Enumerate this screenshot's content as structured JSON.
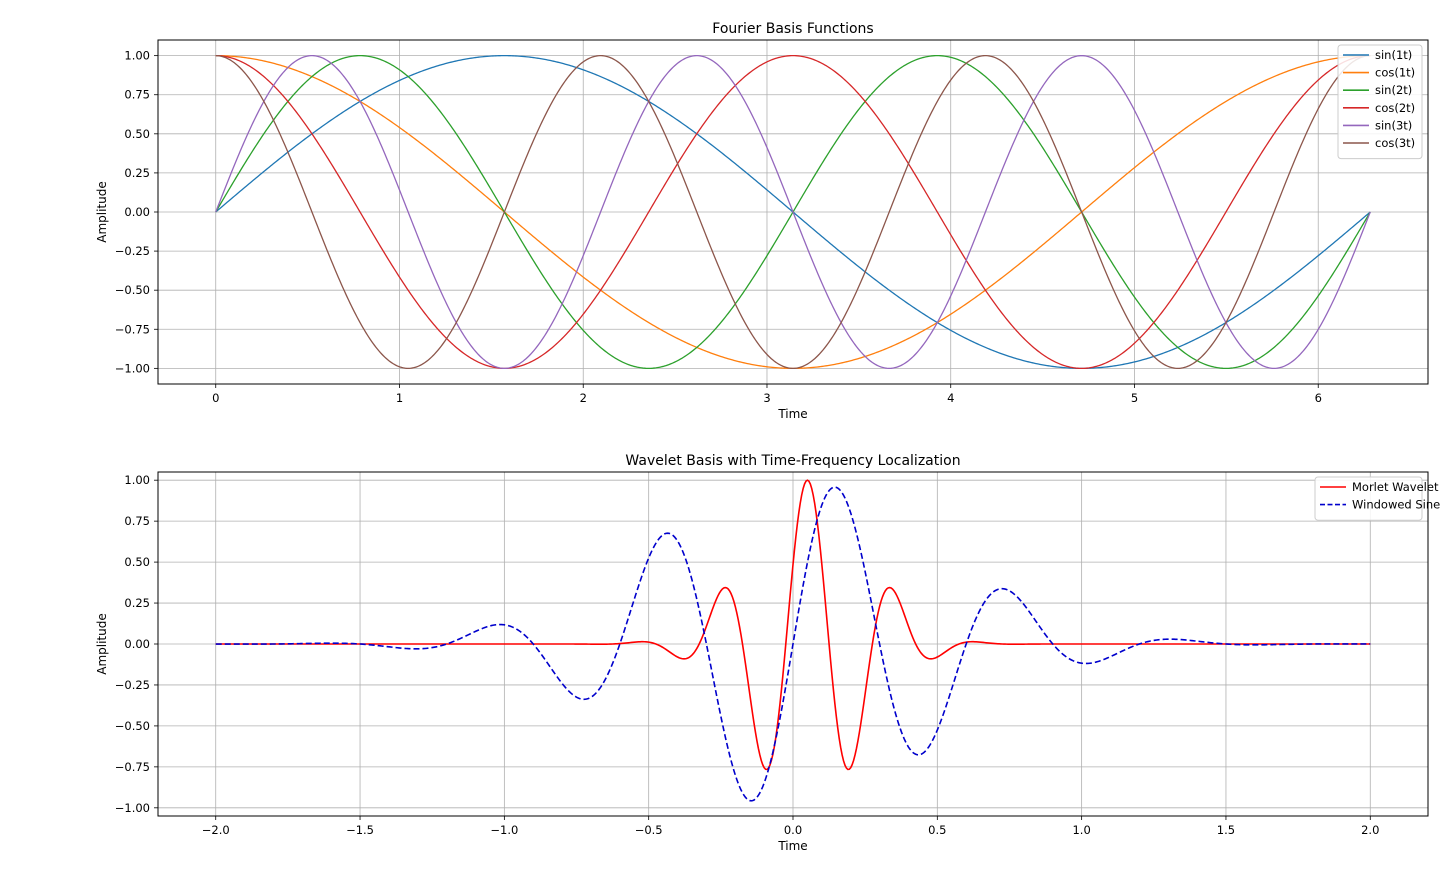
{
  "chart_data": [
    {
      "type": "line",
      "title": "Fourier Basis Functions",
      "xlabel": "Time",
      "ylabel": "Amplitude",
      "xlim": [
        -0.3142,
        6.5974
      ],
      "ylim": [
        -1.1,
        1.1
      ],
      "xticks": [
        0,
        1,
        2,
        3,
        4,
        5,
        6
      ],
      "yticks": [
        -1.0,
        -0.75,
        -0.5,
        -0.25,
        0.0,
        0.25,
        0.5,
        0.75,
        1.0
      ],
      "ytick_labels": [
        "−1.00",
        "−0.75",
        "−0.50",
        "−0.25",
        "0.00",
        "0.25",
        "0.50",
        "0.75",
        "1.00"
      ],
      "grid": true,
      "legend": "top-right",
      "x_range": [
        0,
        6.2832
      ],
      "series": [
        {
          "name": "sin(1t)",
          "func": "sin",
          "freq": 1,
          "color": "#1f77b4"
        },
        {
          "name": "cos(1t)",
          "func": "cos",
          "freq": 1,
          "color": "#ff7f0e"
        },
        {
          "name": "sin(2t)",
          "func": "sin",
          "freq": 2,
          "color": "#2ca02c"
        },
        {
          "name": "cos(2t)",
          "func": "cos",
          "freq": 2,
          "color": "#d62728"
        },
        {
          "name": "sin(3t)",
          "func": "sin",
          "freq": 3,
          "color": "#9467bd"
        },
        {
          "name": "cos(3t)",
          "func": "cos",
          "freq": 3,
          "color": "#8c564b"
        }
      ]
    },
    {
      "type": "line",
      "title": "Wavelet Basis with Time-Frequency Localization",
      "xlabel": "Time",
      "ylabel": "Amplitude",
      "xlim": [
        -2.2,
        2.2
      ],
      "ylim": [
        -1.05,
        1.05
      ],
      "xticks": [
        -2.0,
        -1.5,
        -1.0,
        -0.5,
        0.0,
        0.5,
        1.0,
        1.5,
        2.0
      ],
      "xtick_labels": [
        "−2.0",
        "−1.5",
        "−1.0",
        "−0.5",
        "0.0",
        "0.5",
        "1.0",
        "1.5",
        "2.0"
      ],
      "yticks": [
        -1.0,
        -0.75,
        -0.5,
        -0.25,
        0.0,
        0.25,
        0.5,
        0.75,
        1.0
      ],
      "ytick_labels": [
        "−1.00",
        "−0.75",
        "−0.50",
        "−0.25",
        "0.00",
        "0.25",
        "0.50",
        "0.75",
        "1.00"
      ],
      "grid": true,
      "legend": "top-right",
      "x_range": [
        -2.0,
        2.0
      ],
      "series": [
        {
          "name": "Morlet Wavelet",
          "func": "morlet",
          "center": 0.05,
          "sigma": 0.2,
          "freq": 3.3333,
          "style": "solid",
          "color": "#ff0000"
        },
        {
          "name": "Windowed Sine",
          "func": "windowed_sine",
          "center": 0.0,
          "sigma": 0.5,
          "freq": 1.6667,
          "style": "dashed",
          "color": "#0000cc"
        }
      ]
    }
  ]
}
